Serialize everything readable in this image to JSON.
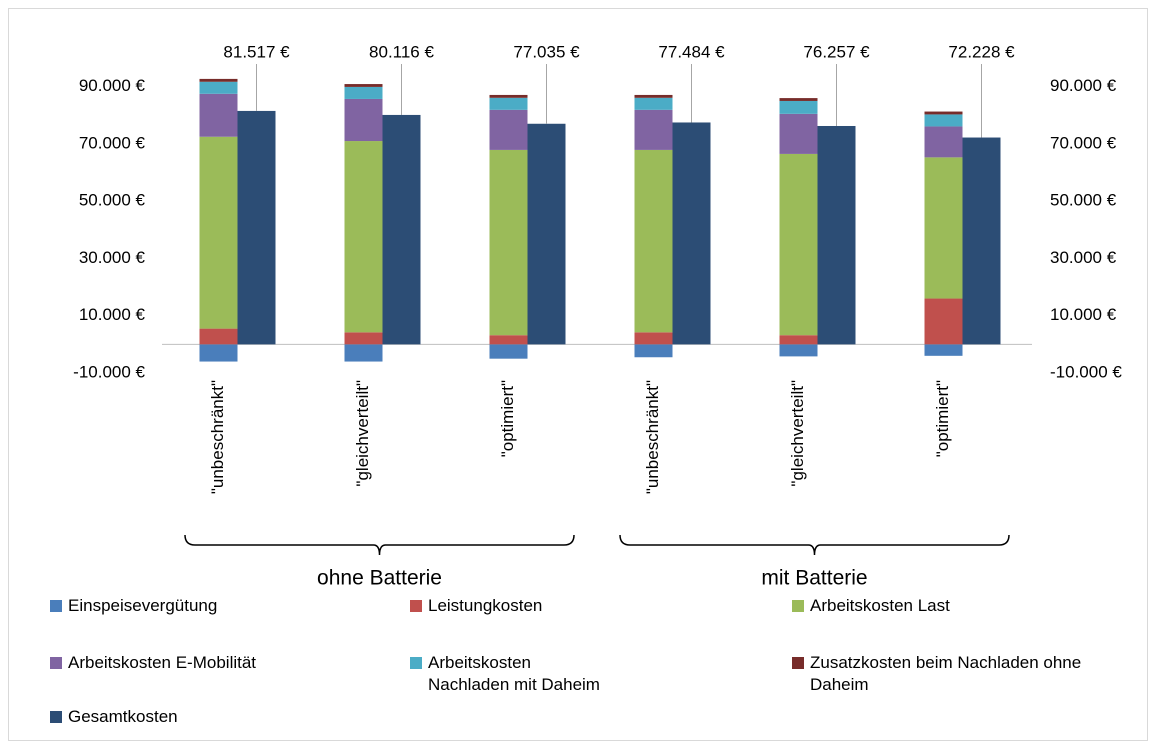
{
  "chart_data": {
    "type": "bar",
    "categories": [
      "\"unbeschränkt\"",
      "\"gleichverteilt\"",
      "\"optimiert\"",
      "\"unbeschränkt\"",
      "\"gleichverteilt\"",
      "\"optimiert\""
    ],
    "groups": [
      "ohne Batterie",
      "mit Batterie"
    ],
    "series": [
      {
        "name": "Einspeisevergütung",
        "color": "#4a7ebb",
        "values": [
          -6000,
          -6000,
          -5000,
          -4500,
          -4200,
          -4000
        ]
      },
      {
        "name": "Leistungkosten",
        "color": "#c0504d",
        "values": [
          5500,
          4200,
          3200,
          4200,
          3200,
          16000
        ]
      },
      {
        "name": "Arbeitskosten Last",
        "color": "#9bbb59",
        "values": [
          67000,
          66800,
          64700,
          63700,
          63300,
          49300
        ]
      },
      {
        "name": "Arbeitskosten E-Mobilität",
        "color": "#8064a2",
        "values": [
          15000,
          14700,
          14000,
          14000,
          14000,
          10800
        ]
      },
      {
        "name": "Arbeitskosten Nachladen mit Daheim",
        "color": "#4bacc6",
        "values": [
          4200,
          4200,
          4200,
          4200,
          4500,
          4200
        ]
      },
      {
        "name": "Zusatzkosten beim Nachladen ohne Daheim",
        "color": "#772c2a",
        "values": [
          1000,
          1000,
          1000,
          1000,
          1000,
          1000
        ]
      },
      {
        "name": "Gesamtkosten",
        "color": "#2c4d75",
        "stacked": false,
        "values": [
          81517,
          80116,
          77035,
          77484,
          76257,
          72228
        ],
        "value_labels": [
          "81.517 €",
          "80.116 €",
          "77.035 €",
          "77.484 €",
          "76.257 €",
          "72.228 €"
        ]
      }
    ],
    "ylim": [
      -10000,
      100000
    ],
    "yticks": [
      {
        "value": -10000,
        "label": "-10.000 €"
      },
      {
        "value": 10000,
        "label": "10.000 €"
      },
      {
        "value": 30000,
        "label": "30.000 €"
      },
      {
        "value": 50000,
        "label": "50.000 €"
      },
      {
        "value": 70000,
        "label": "70.000 €"
      },
      {
        "value": 90000,
        "label": "90.000 €"
      }
    ],
    "grid": false
  }
}
